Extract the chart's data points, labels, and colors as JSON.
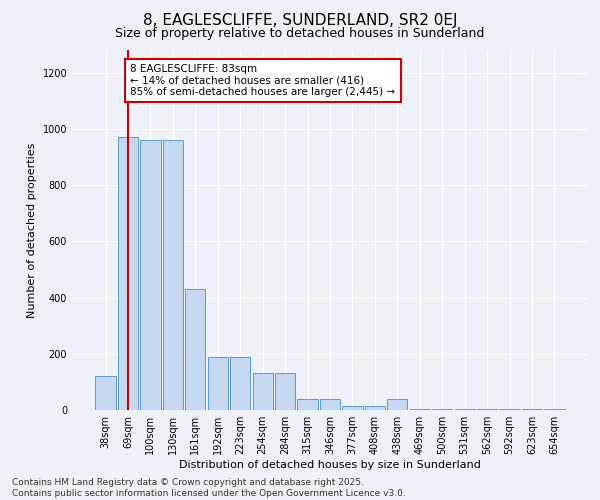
{
  "title": "8, EAGLESCLIFFE, SUNDERLAND, SR2 0EJ",
  "subtitle": "Size of property relative to detached houses in Sunderland",
  "xlabel": "Distribution of detached houses by size in Sunderland",
  "ylabel": "Number of detached properties",
  "categories": [
    "38sqm",
    "69sqm",
    "100sqm",
    "130sqm",
    "161sqm",
    "192sqm",
    "223sqm",
    "254sqm",
    "284sqm",
    "315sqm",
    "346sqm",
    "377sqm",
    "408sqm",
    "438sqm",
    "469sqm",
    "500sqm",
    "531sqm",
    "562sqm",
    "592sqm",
    "623sqm",
    "654sqm"
  ],
  "values": [
    120,
    970,
    960,
    960,
    430,
    190,
    190,
    130,
    130,
    40,
    40,
    15,
    15,
    40,
    5,
    5,
    5,
    5,
    3,
    5,
    3
  ],
  "bar_color": "#c5d8f0",
  "bar_edge_color": "#5b9bd5",
  "vline_x": 1.0,
  "vline_color": "#cc0000",
  "annotation_text": "8 EAGLESCLIFFE: 83sqm\n← 14% of detached houses are smaller (416)\n85% of semi-detached houses are larger (2,445) →",
  "annotation_box_color": "#ffffff",
  "annotation_box_edge": "#cc0000",
  "ylim": [
    0,
    1280
  ],
  "yticks": [
    0,
    200,
    400,
    600,
    800,
    1000,
    1200
  ],
  "footer_line1": "Contains HM Land Registry data © Crown copyright and database right 2025.",
  "footer_line2": "Contains public sector information licensed under the Open Government Licence v3.0.",
  "bg_color": "#eef2f8",
  "plot_bg_color": "#eef2f8",
  "grid_color": "#ffffff",
  "title_fontsize": 11,
  "subtitle_fontsize": 9,
  "xlabel_fontsize": 8,
  "ylabel_fontsize": 8,
  "tick_fontsize": 7,
  "footer_fontsize": 6.5,
  "annotation_fontsize": 7.5
}
